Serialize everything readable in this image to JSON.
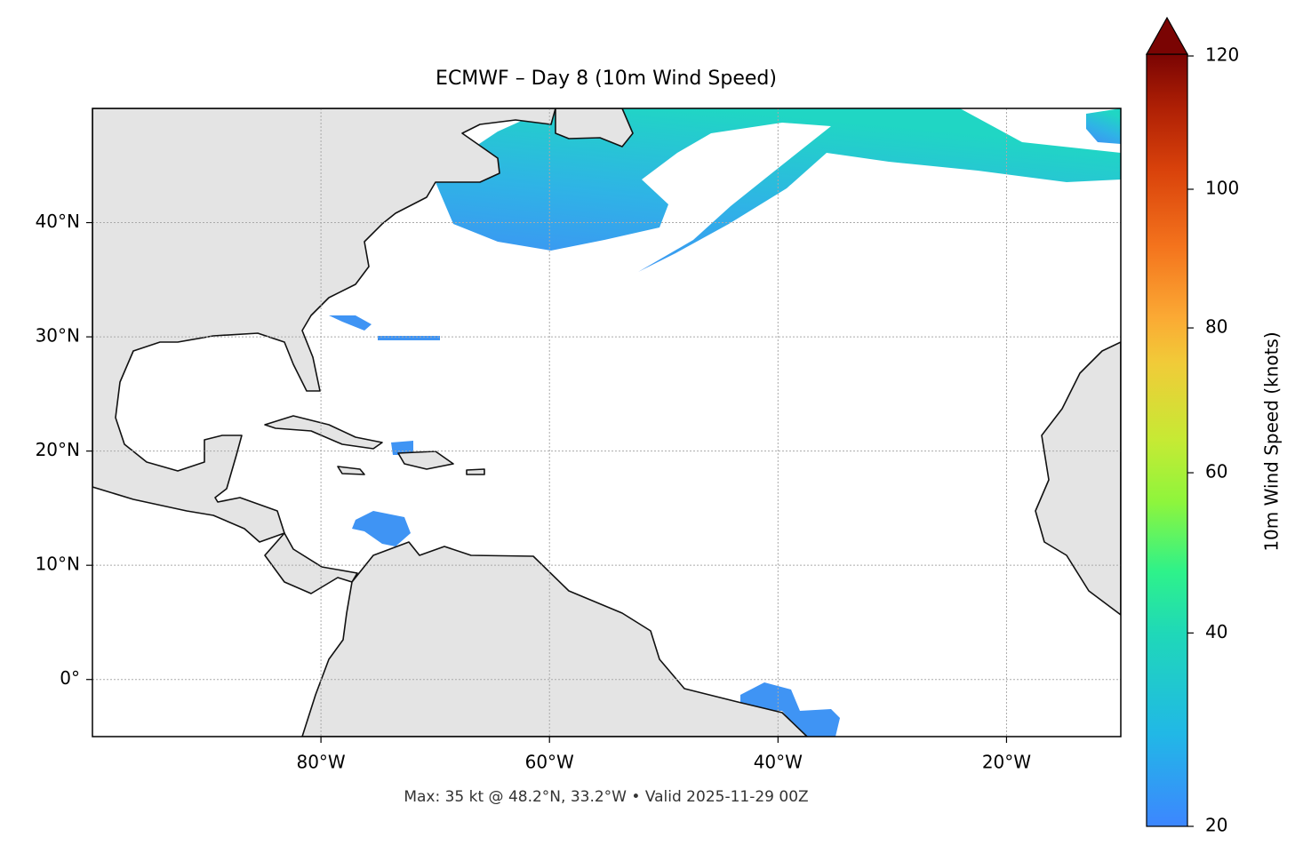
{
  "chart_data": {
    "type": "map",
    "title": "ECMWF – Day 8 (10m Wind Speed)",
    "subtitle": "Max: 35 kt @ 48.2°N, 33.2°W • Valid 2025-11-29 00Z",
    "xlim": [
      -100,
      -10
    ],
    "ylim": [
      -5,
      50
    ],
    "xticks": [
      {
        "value": -80,
        "label": "80°W"
      },
      {
        "value": -60,
        "label": "60°W"
      },
      {
        "value": -40,
        "label": "40°W"
      },
      {
        "value": -20,
        "label": "20°W"
      }
    ],
    "yticks": [
      {
        "value": 0,
        "label": "0°"
      },
      {
        "value": 10,
        "label": "10°N"
      },
      {
        "value": 20,
        "label": "20°N"
      },
      {
        "value": 30,
        "label": "30°N"
      },
      {
        "value": 40,
        "label": "40°N"
      }
    ],
    "grid": true,
    "colorbar": {
      "label": "10m Wind Speed (knots)",
      "lim": [
        20,
        120
      ],
      "ticks": [
        20,
        40,
        60,
        80,
        100,
        120
      ],
      "extend": "max"
    }
  }
}
